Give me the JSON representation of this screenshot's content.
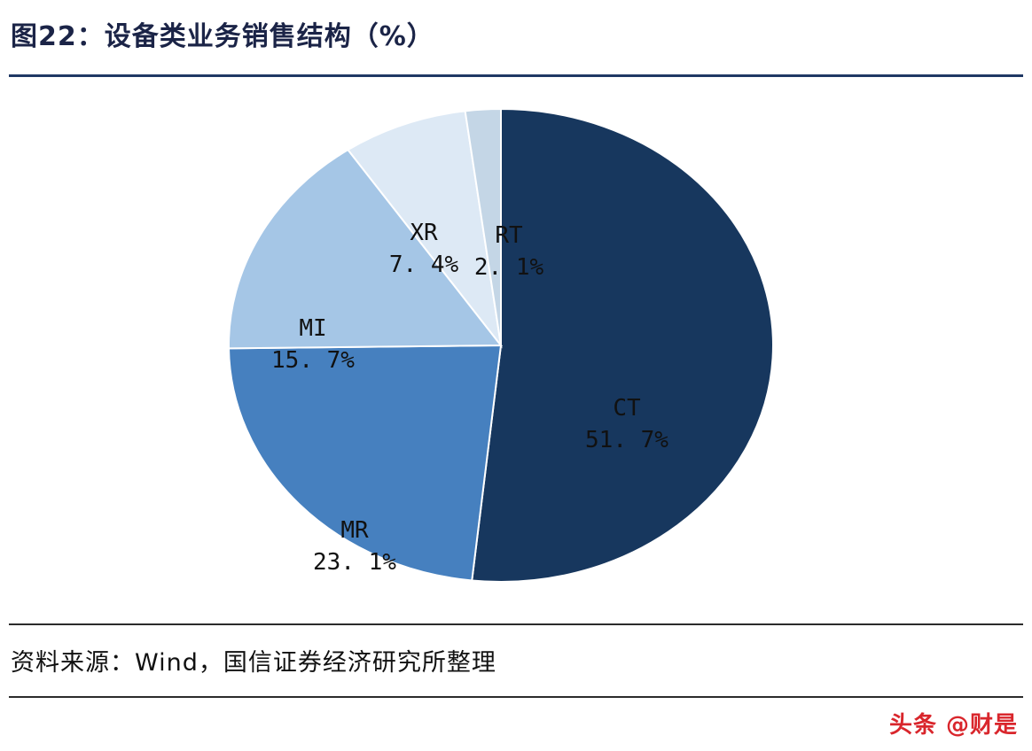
{
  "header": {
    "title": "图22：设备类业务销售结构（%）"
  },
  "footer": {
    "source": "资料来源：Wind，国信证券经济研究所整理",
    "watermark": "头条 @财是"
  },
  "colors": {
    "title": "#1b2447",
    "title_rule": "#1f3864",
    "watermark": "#d9262c",
    "label_text": "#111111"
  },
  "chart_data": {
    "type": "pie",
    "title": "设备类业务销售结构（%）",
    "unit": "%",
    "start_angle_deg": 0,
    "direction": "clockwise",
    "legend": "none",
    "slices": [
      {
        "label": "CT",
        "value": 51.7,
        "display": "51. 7%",
        "color": "#17375e"
      },
      {
        "label": "MR",
        "value": 23.1,
        "display": "23. 1%",
        "color": "#4680bf"
      },
      {
        "label": "MI",
        "value": 15.7,
        "display": "15. 7%",
        "color": "#a5c6e6"
      },
      {
        "label": "XR",
        "value": 7.4,
        "display": "7. 4%",
        "color": "#dde9f5"
      },
      {
        "label": "RT",
        "value": 2.1,
        "display": "2. 1%",
        "color": "#c4d6e6"
      }
    ]
  }
}
